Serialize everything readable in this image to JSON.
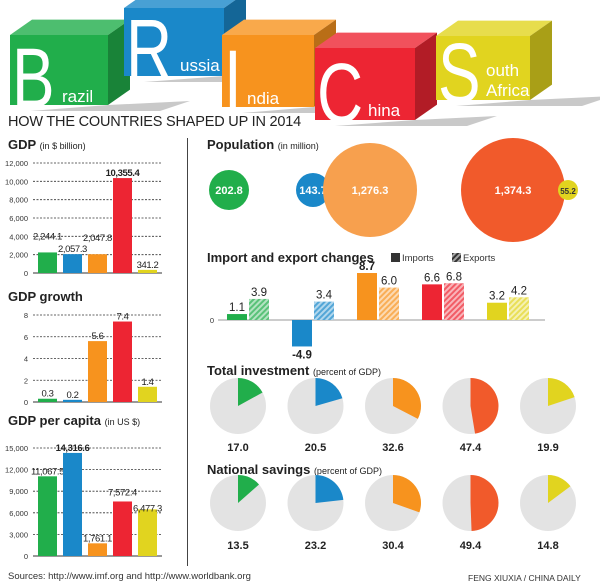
{
  "header": {
    "letters": [
      "B",
      "R",
      "I",
      "C",
      "S"
    ],
    "country_rest": [
      "razil",
      "ussia",
      "ndia",
      "hina",
      "outh Africa"
    ],
    "subtitle": "HOW THE COUNTRIES SHAPED UP IN 2014"
  },
  "colors": {
    "Brazil": "#21ae4b",
    "Russia": "#1a88c9",
    "India": "#f7931e",
    "China": "#ed2533",
    "South Africa": "#e1d41f",
    "China_alt": "#f15a2b",
    "India_alt": "#f7a04e"
  },
  "footer": {
    "sources": "Sources: http://www.imf.org and http://www.worldbank.org",
    "credit": "FENG XIUXIA / CHINA DAILY"
  },
  "chart_data": [
    {
      "type": "bar",
      "title": "GDP",
      "unit": "(in $ billion)",
      "categories": [
        "Brazil",
        "Russia",
        "India",
        "China",
        "South Africa"
      ],
      "values": [
        2244.1,
        2057.3,
        2047.8,
        10355.4,
        341.2
      ],
      "labels": [
        "2,244.1",
        "2,057.3",
        "2,047.8",
        "10,355.4",
        "341.2"
      ],
      "ylim": [
        0,
        12000
      ],
      "ticks": [
        "0",
        "2,000",
        "4,000",
        "6,000",
        "8,000",
        "10,000",
        "12,000"
      ],
      "grid": true
    },
    {
      "type": "bar",
      "title": "GDP growth",
      "categories": [
        "Brazil",
        "Russia",
        "India",
        "China",
        "South Africa"
      ],
      "values": [
        0.3,
        0.2,
        5.6,
        7.4,
        1.4
      ],
      "labels": [
        "0.3",
        "0.2",
        "5.6",
        "7.4",
        "1.4"
      ],
      "ylim": [
        0,
        8
      ],
      "ticks": [
        "0",
        "2",
        "4",
        "6",
        "8"
      ],
      "grid": true
    },
    {
      "type": "bar",
      "title": "GDP per capita",
      "unit": "(in US $)",
      "categories": [
        "Brazil",
        "Russia",
        "India",
        "China",
        "South Africa"
      ],
      "values": [
        11067.5,
        14316.6,
        1761.1,
        7572.4,
        6477.3
      ],
      "labels": [
        "11,067.5",
        "14,316.6",
        "1,761.1",
        "7,572.4",
        "6,477.3"
      ],
      "ylim": [
        0,
        15000
      ],
      "ticks": [
        "0",
        "3,000",
        "6,000",
        "9,000",
        "12,000",
        "15,000"
      ],
      "grid": true
    },
    {
      "type": "bubble",
      "title": "Population",
      "unit": "(in million)",
      "categories": [
        "Brazil",
        "Russia",
        "India",
        "China",
        "South Africa"
      ],
      "values": [
        202.8,
        143.7,
        1276.3,
        1374.3,
        55.2
      ],
      "labels": [
        "202.8",
        "143.7",
        "1,276.3",
        "1,374.3",
        "55.2"
      ]
    },
    {
      "type": "bar",
      "title": "Import and export changes",
      "categories": [
        "Brazil",
        "Russia",
        "India",
        "China",
        "South Africa"
      ],
      "series": [
        {
          "name": "Imports",
          "values": [
            1.1,
            -4.9,
            8.7,
            6.6,
            3.2
          ],
          "labels": [
            "1.1",
            "-4.9",
            "8.7",
            "6.6",
            "3.2"
          ]
        },
        {
          "name": "Exports",
          "values": [
            3.9,
            3.4,
            6.0,
            6.8,
            4.2
          ],
          "labels": [
            "3.9",
            "3.4",
            "6.0",
            "6.8",
            "4.2"
          ]
        }
      ],
      "zero_label": "0",
      "legend": "top-right"
    },
    {
      "type": "pie",
      "title": "Total investment",
      "unit": "(percent of GDP)",
      "categories": [
        "Brazil",
        "Russia",
        "India",
        "China",
        "South Africa"
      ],
      "values": [
        17.0,
        20.5,
        32.6,
        47.4,
        19.9
      ],
      "labels": [
        "17.0",
        "20.5",
        "32.6",
        "47.4",
        "19.9"
      ]
    },
    {
      "type": "pie",
      "title": "National savings",
      "unit": "(percent of GDP)",
      "categories": [
        "Brazil",
        "Russia",
        "India",
        "China",
        "South Africa"
      ],
      "values": [
        13.5,
        23.2,
        30.4,
        49.4,
        14.8
      ],
      "labels": [
        "13.5",
        "23.2",
        "30.4",
        "49.4",
        "14.8"
      ]
    }
  ]
}
